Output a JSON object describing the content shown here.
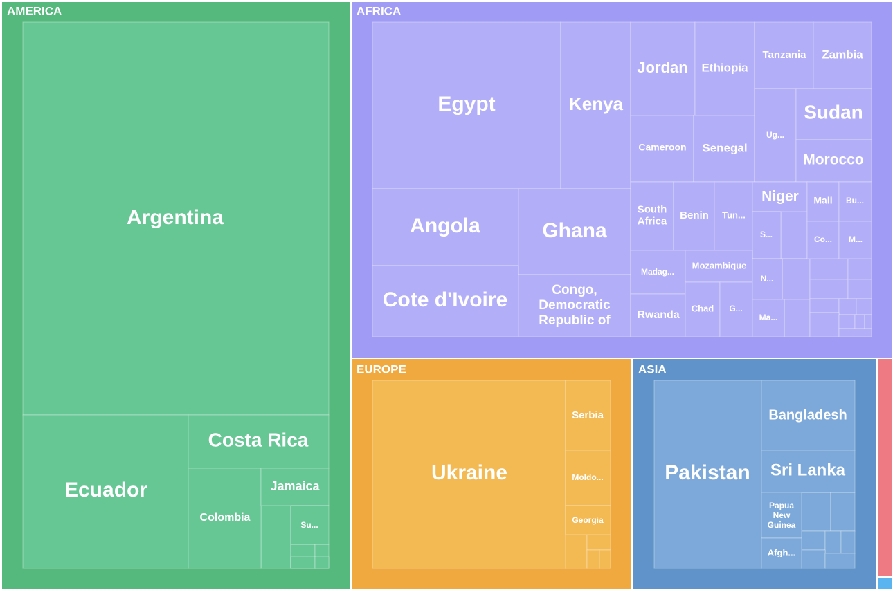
{
  "chart_data": {
    "type": "treemap",
    "groups": [
      {
        "name": "AMERICA",
        "color": "#55b87c",
        "tile_color": "#66c795",
        "children": [
          "Argentina",
          "Ecuador",
          "Costa Rica",
          "Colombia",
          "Jamaica",
          "Su..."
        ]
      },
      {
        "name": "AFRICA",
        "color": "#a09bf5",
        "tile_color": "#b2aef8",
        "children": [
          "Egypt",
          "Kenya",
          "Angola",
          "Ghana",
          "Cote d'Ivoire",
          "Congo, Democratic Republic of",
          "Jordan",
          "Ethiopia",
          "Tanzania",
          "Zambia",
          "Cameroon",
          "Senegal",
          "Ug...",
          "Sudan",
          "Morocco",
          "South Africa",
          "Benin",
          "Tun...",
          "Niger",
          "S...",
          "Mali",
          "Bu...",
          "Co...",
          "M...",
          "Madag...",
          "Mozambique",
          "Rwanda",
          "Chad",
          "G...",
          "N...",
          "Ma..."
        ]
      },
      {
        "name": "EUROPE",
        "color": "#f0a93e",
        "tile_color": "#f3b952",
        "children": [
          "Ukraine",
          "Serbia",
          "Moldo...",
          "Georgia"
        ]
      },
      {
        "name": "ASIA",
        "color": "#5f93c9",
        "tile_color": "#7ca9d9",
        "children": [
          "Pakistan",
          "Bangladesh",
          "Sri Lanka",
          "Papua New Guinea",
          "Afgh..."
        ]
      }
    ]
  }
}
